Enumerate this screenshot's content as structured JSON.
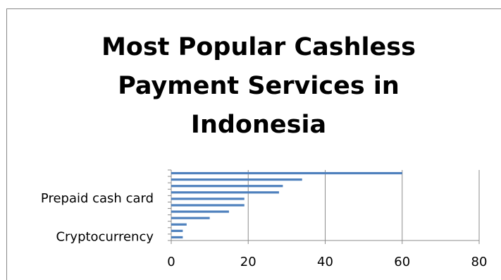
{
  "chart_data": {
    "type": "barh",
    "title": "Most Popular Cashless Payment Services in Indonesia",
    "categories": [
      "Cryptocurrency",
      null,
      null,
      null,
      null,
      null,
      "Prepaid cash card",
      null,
      null,
      null,
      null
    ],
    "values": [
      3,
      3,
      4,
      10,
      15,
      19,
      19,
      28,
      29,
      34,
      60
    ],
    "color": "#4f81bd",
    "xlim": [
      0,
      80
    ],
    "xticks": [
      0,
      20,
      40,
      60,
      80
    ],
    "grid": true
  }
}
